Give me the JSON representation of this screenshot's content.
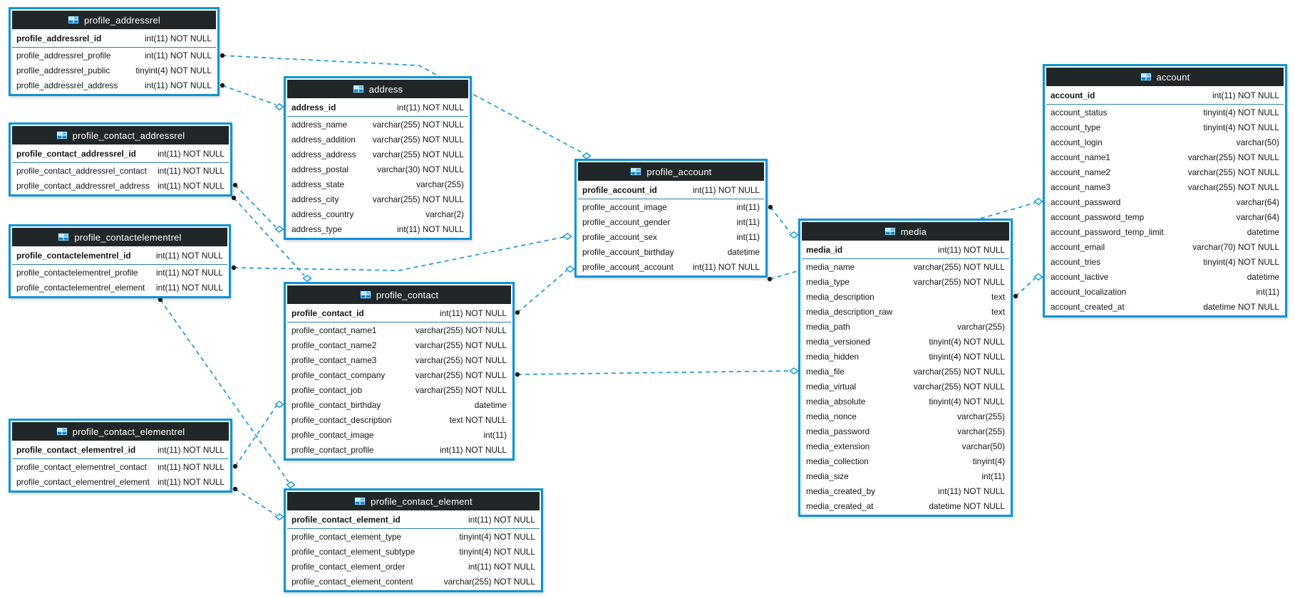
{
  "diagram": {
    "type": "eer-database-diagram",
    "colors": {
      "table_border": "#0b93d6",
      "header_background": "#212628",
      "header_text": "#ffffff",
      "row_text": "#141414",
      "relationship_line": "#1a9ad8",
      "fk_endpoint_dot": "#1b1b1b",
      "ref_endpoint_diamond_fill": "#ffffff"
    },
    "icons": {
      "table_header_icon": "table-grid-icon"
    }
  },
  "tables": [
    {
      "name": "profile_addressrel",
      "primary_key": {
        "name": "profile_addressrel_id",
        "type": "int(11) NOT NULL"
      },
      "columns": [
        {
          "name": "profile_addressrel_profile",
          "type": "int(11) NOT NULL"
        },
        {
          "name": "profile_addressrel_public",
          "type": "tinyint(4) NOT NULL"
        },
        {
          "name": "profile_addressrel_address",
          "type": "int(11) NOT NULL"
        }
      ]
    },
    {
      "name": "profile_contact_addressrel",
      "primary_key": {
        "name": "profile_contact_addressrel_id",
        "type": "int(11) NOT NULL"
      },
      "columns": [
        {
          "name": "profile_contact_addressrel_contact",
          "type": "int(11) NOT NULL"
        },
        {
          "name": "profile_contact_addressrel_address",
          "type": "int(11) NOT NULL"
        }
      ]
    },
    {
      "name": "profile_contactelementrel",
      "primary_key": {
        "name": "profile_contactelementrel_id",
        "type": "int(11) NOT NULL"
      },
      "columns": [
        {
          "name": "profile_contactelementrel_profile",
          "type": "int(11) NOT NULL"
        },
        {
          "name": "profile_contactelementrel_element",
          "type": "int(11) NOT NULL"
        }
      ]
    },
    {
      "name": "profile_contact_elementrel",
      "primary_key": {
        "name": "profile_contact_elementrel_id",
        "type": "int(11) NOT NULL"
      },
      "columns": [
        {
          "name": "profile_contact_elementrel_contact",
          "type": "int(11) NOT NULL"
        },
        {
          "name": "profile_contact_elementrel_element",
          "type": "int(11) NOT NULL"
        }
      ]
    },
    {
      "name": "address",
      "primary_key": {
        "name": "address_id",
        "type": "int(11) NOT NULL"
      },
      "columns": [
        {
          "name": "address_name",
          "type": "varchar(255) NOT NULL"
        },
        {
          "name": "address_addition",
          "type": "varchar(255) NOT NULL"
        },
        {
          "name": "address_address",
          "type": "varchar(255) NOT NULL"
        },
        {
          "name": "address_postal",
          "type": "varchar(30) NOT NULL"
        },
        {
          "name": "address_state",
          "type": "varchar(255)"
        },
        {
          "name": "address_city",
          "type": "varchar(255) NOT NULL"
        },
        {
          "name": "address_country",
          "type": "varchar(2)"
        },
        {
          "name": "address_type",
          "type": "int(11) NOT NULL"
        }
      ]
    },
    {
      "name": "profile_contact",
      "primary_key": {
        "name": "profile_contact_id",
        "type": "int(11) NOT NULL"
      },
      "columns": [
        {
          "name": "profile_contact_name1",
          "type": "varchar(255) NOT NULL"
        },
        {
          "name": "profile_contact_name2",
          "type": "varchar(255) NOT NULL"
        },
        {
          "name": "profile_contact_name3",
          "type": "varchar(255) NOT NULL"
        },
        {
          "name": "profile_contact_company",
          "type": "varchar(255) NOT NULL"
        },
        {
          "name": "profile_contact_job",
          "type": "varchar(255) NOT NULL"
        },
        {
          "name": "profile_contact_birthday",
          "type": "datetime"
        },
        {
          "name": "profile_contact_description",
          "type": "text NOT NULL"
        },
        {
          "name": "profile_contact_image",
          "type": "int(11)"
        },
        {
          "name": "profile_contact_profile",
          "type": "int(11) NOT NULL"
        }
      ]
    },
    {
      "name": "profile_contact_element",
      "primary_key": {
        "name": "profile_contact_element_id",
        "type": "int(11) NOT NULL"
      },
      "columns": [
        {
          "name": "profile_contact_element_type",
          "type": "tinyint(4) NOT NULL"
        },
        {
          "name": "profile_contact_element_subtype",
          "type": "tinyint(4) NOT NULL"
        },
        {
          "name": "profile_contact_element_order",
          "type": "int(11) NOT NULL"
        },
        {
          "name": "profile_contact_element_content",
          "type": "varchar(255) NOT NULL"
        }
      ]
    },
    {
      "name": "profile_account",
      "primary_key": {
        "name": "profile_account_id",
        "type": "int(11) NOT NULL"
      },
      "columns": [
        {
          "name": "profile_account_image",
          "type": "int(11)"
        },
        {
          "name": "profile_account_gender",
          "type": "int(11)"
        },
        {
          "name": "profile_account_sex",
          "type": "int(11)"
        },
        {
          "name": "profile_account_birthday",
          "type": "datetime"
        },
        {
          "name": "profile_account_account",
          "type": "int(11) NOT NULL"
        }
      ]
    },
    {
      "name": "media",
      "primary_key": {
        "name": "media_id",
        "type": "int(11) NOT NULL"
      },
      "columns": [
        {
          "name": "media_name",
          "type": "varchar(255) NOT NULL"
        },
        {
          "name": "media_type",
          "type": "varchar(255) NOT NULL"
        },
        {
          "name": "media_description",
          "type": "text"
        },
        {
          "name": "media_description_raw",
          "type": "text"
        },
        {
          "name": "media_path",
          "type": "varchar(255)"
        },
        {
          "name": "media_versioned",
          "type": "tinyint(4) NOT NULL"
        },
        {
          "name": "media_hidden",
          "type": "tinyint(4) NOT NULL"
        },
        {
          "name": "media_file",
          "type": "varchar(255) NOT NULL"
        },
        {
          "name": "media_virtual",
          "type": "varchar(255) NOT NULL"
        },
        {
          "name": "media_absolute",
          "type": "tinyint(4) NOT NULL"
        },
        {
          "name": "media_nonce",
          "type": "varchar(255)"
        },
        {
          "name": "media_password",
          "type": "varchar(255)"
        },
        {
          "name": "media_extension",
          "type": "varchar(50)"
        },
        {
          "name": "media_collection",
          "type": "tinyint(4)"
        },
        {
          "name": "media_size",
          "type": "int(11)"
        },
        {
          "name": "media_created_by",
          "type": "int(11) NOT NULL"
        },
        {
          "name": "media_created_at",
          "type": "datetime NOT NULL"
        }
      ]
    },
    {
      "name": "account",
      "primary_key": {
        "name": "account_id",
        "type": "int(11) NOT NULL"
      },
      "columns": [
        {
          "name": "account_status",
          "type": "tinyint(4) NOT NULL"
        },
        {
          "name": "account_type",
          "type": "tinyint(4) NOT NULL"
        },
        {
          "name": "account_login",
          "type": "varchar(50)"
        },
        {
          "name": "account_name1",
          "type": "varchar(255) NOT NULL"
        },
        {
          "name": "account_name2",
          "type": "varchar(255) NOT NULL"
        },
        {
          "name": "account_name3",
          "type": "varchar(255) NOT NULL"
        },
        {
          "name": "account_password",
          "type": "varchar(64)"
        },
        {
          "name": "account_password_temp",
          "type": "varchar(64)"
        },
        {
          "name": "account_password_temp_limit",
          "type": "datetime"
        },
        {
          "name": "account_email",
          "type": "varchar(70) NOT NULL"
        },
        {
          "name": "account_tries",
          "type": "tinyint(4) NOT NULL"
        },
        {
          "name": "account_lactive",
          "type": "datetime"
        },
        {
          "name": "account_localization",
          "type": "int(11)"
        },
        {
          "name": "account_created_at",
          "type": "datetime NOT NULL"
        }
      ]
    }
  ],
  "relationships": [
    {
      "from_table": "profile_addressrel",
      "from_column": "profile_addressrel_profile",
      "to_table": "profile_account"
    },
    {
      "from_table": "profile_addressrel",
      "from_column": "profile_addressrel_address",
      "to_table": "address"
    },
    {
      "from_table": "profile_contact_addressrel",
      "from_column": "profile_contact_addressrel_contact",
      "to_table": "profile_contact"
    },
    {
      "from_table": "profile_contact_addressrel",
      "from_column": "profile_contact_addressrel_address",
      "to_table": "address"
    },
    {
      "from_table": "profile_contactelementrel",
      "from_column": "profile_contactelementrel_profile",
      "to_table": "profile_account"
    },
    {
      "from_table": "profile_contactelementrel",
      "from_column": "profile_contactelementrel_element",
      "to_table": "profile_contact_element"
    },
    {
      "from_table": "profile_contact_elementrel",
      "from_column": "profile_contact_elementrel_contact",
      "to_table": "profile_contact"
    },
    {
      "from_table": "profile_contact_elementrel",
      "from_column": "profile_contact_elementrel_element",
      "to_table": "profile_contact_element"
    },
    {
      "from_table": "profile_contact",
      "from_column": "profile_contact_profile",
      "to_table": "profile_account"
    },
    {
      "from_table": "profile_contact",
      "from_column": "profile_contact_image",
      "to_table": "media"
    },
    {
      "from_table": "profile_account",
      "from_column": "profile_account_image",
      "to_table": "media"
    },
    {
      "from_table": "profile_account",
      "from_column": "profile_account_account",
      "to_table": "account"
    },
    {
      "from_table": "media",
      "from_column": "media_created_by",
      "to_table": "account"
    }
  ]
}
